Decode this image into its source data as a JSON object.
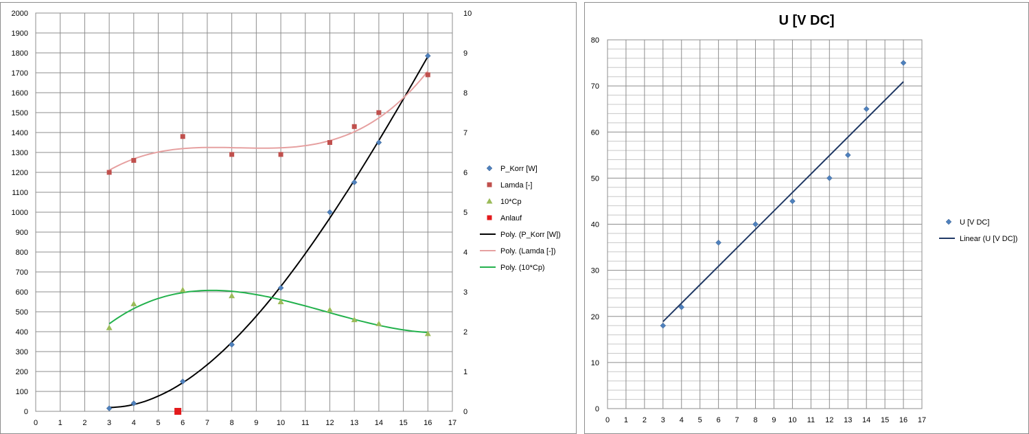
{
  "chart_data": [
    {
      "type": "scatter",
      "title": "",
      "xlabel": "",
      "ylabel": "",
      "xlim": [
        0,
        17
      ],
      "ylim": [
        0,
        2000
      ],
      "y2lim": [
        0,
        10
      ],
      "x_ticks": [
        "0",
        "1",
        "2",
        "3",
        "4",
        "5",
        "6",
        "7",
        "8",
        "9",
        "10",
        "11",
        "12",
        "13",
        "14",
        "15",
        "16",
        "17"
      ],
      "y_ticks": [
        "0",
        "100",
        "200",
        "300",
        "400",
        "500",
        "600",
        "700",
        "800",
        "900",
        "1000",
        "1100",
        "1200",
        "1300",
        "1400",
        "1500",
        "1600",
        "1700",
        "1800",
        "1900",
        "2000"
      ],
      "y2_ticks": [
        "0",
        "1",
        "2",
        "3",
        "4",
        "5",
        "6",
        "7",
        "8",
        "9",
        "10"
      ],
      "grid": true,
      "legend_position": "right",
      "series": [
        {
          "name": "P_Korr [W]",
          "axis": "left",
          "marker": "diamond",
          "color": "#4f81bd",
          "x": [
            3,
            4,
            6,
            8,
            10,
            12,
            13,
            14,
            16
          ],
          "y": [
            15,
            40,
            150,
            335,
            620,
            1000,
            1150,
            1350,
            1785
          ]
        },
        {
          "name": "Lamda [-]",
          "axis": "right",
          "marker": "square",
          "color": "#c0504d",
          "x": [
            3,
            4,
            6,
            8,
            10,
            12,
            13,
            14,
            16
          ],
          "y": [
            6.0,
            6.3,
            6.9,
            6.45,
            6.45,
            6.75,
            7.15,
            7.5,
            8.45
          ]
        },
        {
          "name": "10*Cp",
          "axis": "right",
          "marker": "triangle",
          "color": "#9bbb59",
          "x": [
            3,
            4,
            6,
            8,
            10,
            12,
            13,
            14,
            16
          ],
          "y": [
            2.1,
            2.7,
            3.05,
            2.9,
            2.75,
            2.55,
            2.3,
            2.2,
            1.95
          ]
        },
        {
          "name": "Anlauf",
          "axis": "left",
          "marker": "square-large",
          "color": "#e31a1c",
          "x": [
            5.8
          ],
          "y": [
            0
          ]
        }
      ],
      "trendlines": [
        {
          "name": "Poly. (P_Korr [W])",
          "of": "P_Korr [W]",
          "axis": "left",
          "color": "#000000",
          "type": "polynomial"
        },
        {
          "name": "Poly. (Lamda [-])",
          "of": "Lamda [-]",
          "axis": "right",
          "color": "#e6a0a0",
          "type": "polynomial"
        },
        {
          "name": "Poly. (10*Cp)",
          "of": "10*Cp",
          "axis": "right",
          "color": "#22b14c",
          "type": "polynomial"
        }
      ]
    },
    {
      "type": "scatter",
      "title": "U [V DC]",
      "xlabel": "",
      "ylabel": "",
      "xlim": [
        0,
        17
      ],
      "ylim": [
        0,
        80
      ],
      "x_ticks": [
        "0",
        "1",
        "2",
        "3",
        "4",
        "5",
        "6",
        "7",
        "8",
        "9",
        "10",
        "11",
        "12",
        "13",
        "14",
        "15",
        "16",
        "17"
      ],
      "y_ticks": [
        "0",
        "10",
        "20",
        "30",
        "40",
        "50",
        "60",
        "70",
        "80"
      ],
      "grid": true,
      "legend_position": "right",
      "series": [
        {
          "name": "U [V DC]",
          "marker": "diamond",
          "color": "#4f81bd",
          "x": [
            3,
            4,
            6,
            8,
            10,
            12,
            13,
            14,
            16
          ],
          "y": [
            18,
            22,
            36,
            40,
            45,
            50,
            55,
            65,
            75
          ]
        }
      ],
      "trendlines": [
        {
          "name": "Linear (U [V DC])",
          "of": "U [V DC]",
          "color": "#1f3864",
          "type": "linear"
        }
      ]
    }
  ]
}
